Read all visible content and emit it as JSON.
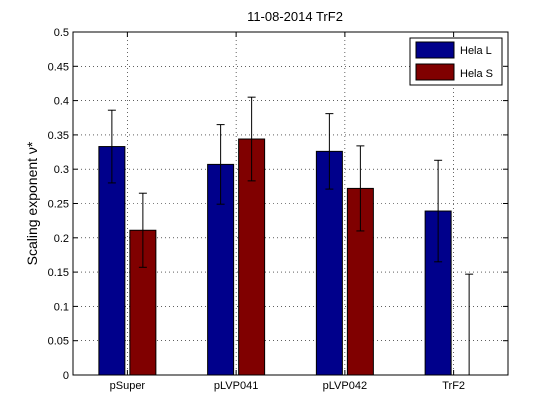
{
  "chart_data": {
    "type": "bar",
    "title": "11-08-2014 TrF2",
    "xlabel": "",
    "ylabel": "Scaling exponent ν*",
    "categories": [
      "pSuper",
      "pLVP041",
      "pLVP042",
      "TrF2"
    ],
    "ylim": [
      0,
      0.5
    ],
    "yticks": [
      "0",
      "0.05",
      "0.1",
      "0.15",
      "0.2",
      "0.25",
      "0.3",
      "0.35",
      "0.4",
      "0.45",
      "0.5"
    ],
    "grid": true,
    "legend_position": "top-right",
    "series": [
      {
        "name": "Hela L",
        "color": "#00008b",
        "values": [
          0.333,
          0.307,
          0.326,
          0.239
        ],
        "errors": [
          0.053,
          0.058,
          0.055,
          0.074
        ]
      },
      {
        "name": "Hela S",
        "color": "#800000",
        "values": [
          0.211,
          0.344,
          0.272,
          0.0
        ],
        "errors": [
          0.054,
          0.061,
          0.062,
          0.147
        ]
      }
    ]
  }
}
